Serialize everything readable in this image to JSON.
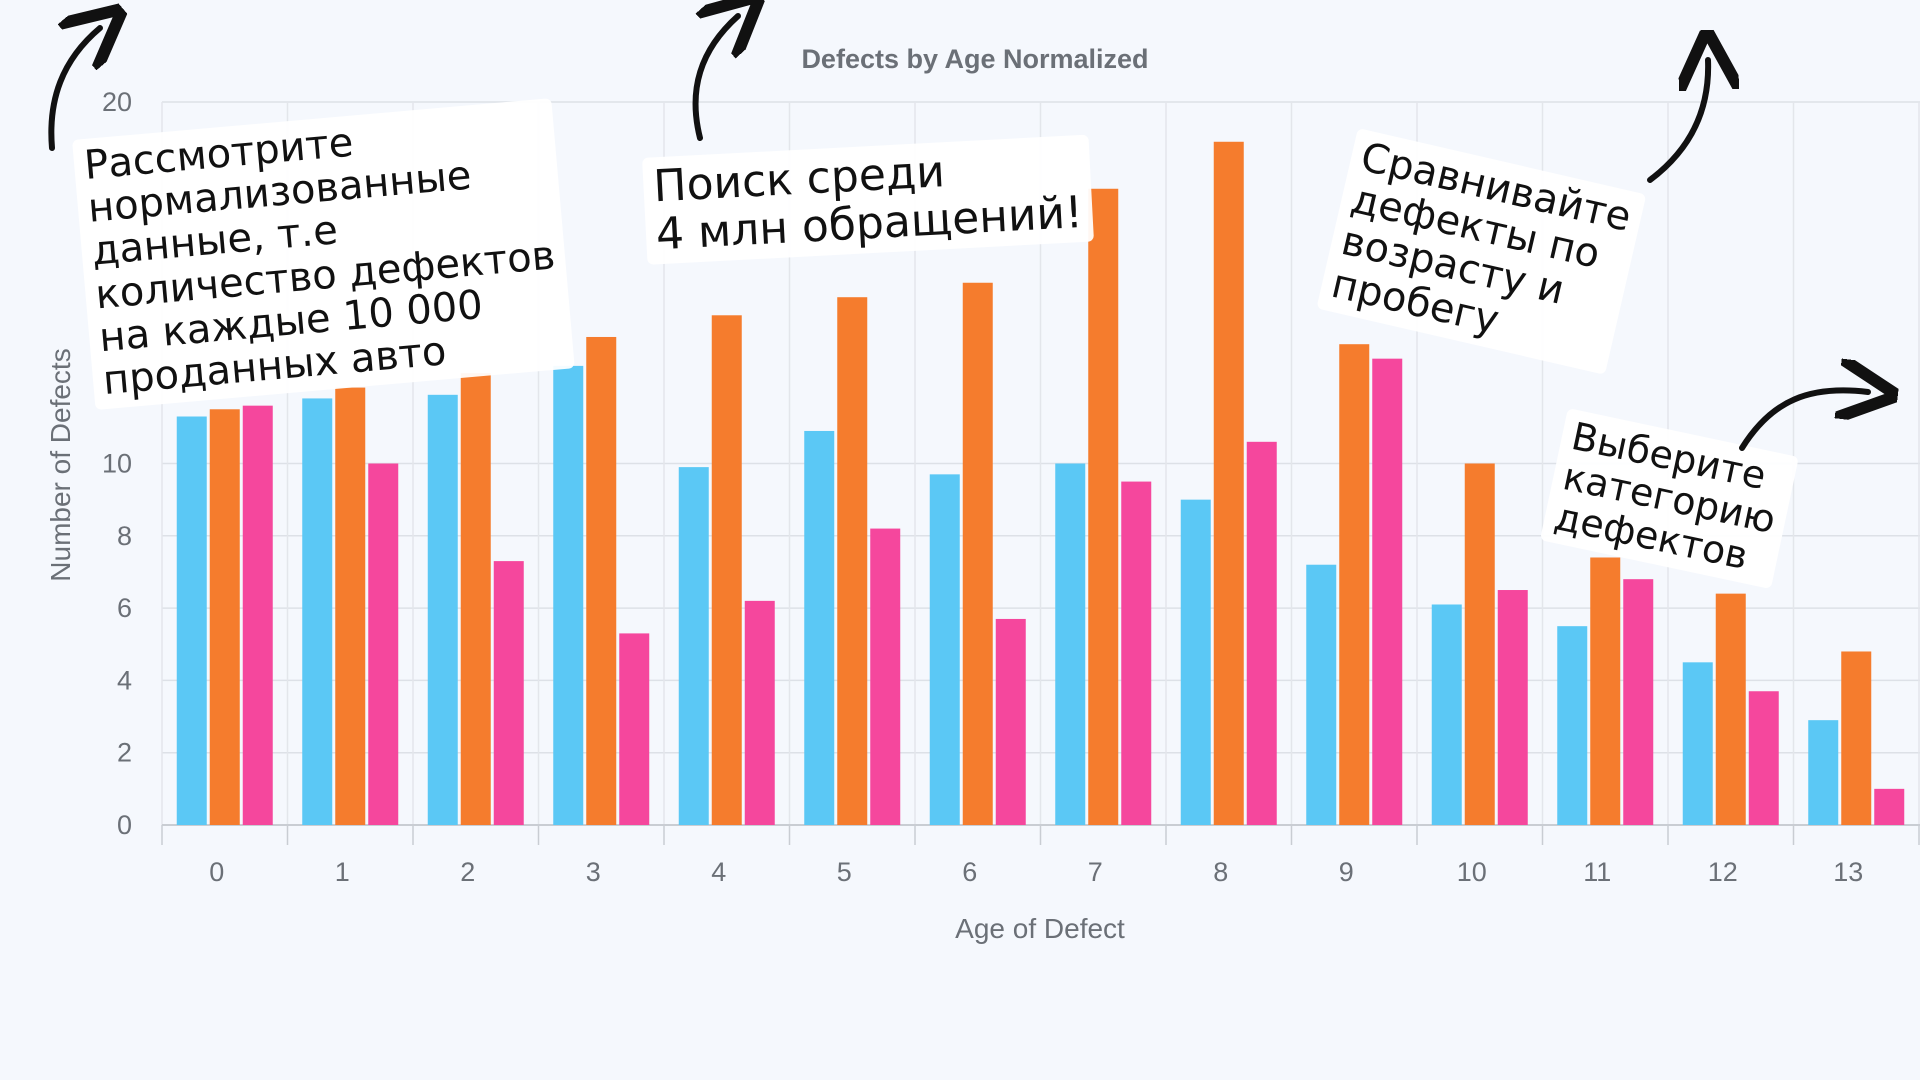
{
  "chart_data": {
    "type": "bar",
    "title": "Defects by Age Normalized",
    "xlabel": "Age of Defect",
    "ylabel": "Number of Defects",
    "ylim": [
      0,
      20
    ],
    "y_ticks": [
      0,
      2,
      4,
      6,
      8,
      10,
      20
    ],
    "categories": [
      "0",
      "1",
      "2",
      "3",
      "4",
      "5",
      "6",
      "7",
      "8",
      "9",
      "10",
      "11",
      "12",
      "13"
    ],
    "grid": true,
    "legend": "none",
    "series": [
      {
        "color": "#5bc8f5",
        "values": [
          11.3,
          11.8,
          11.9,
          12.7,
          9.9,
          10.9,
          9.7,
          10.0,
          9.0,
          7.2,
          6.1,
          5.5,
          4.5,
          2.9
        ]
      },
      {
        "color": "#f57c2d",
        "values": [
          11.5,
          12.1,
          12.5,
          13.5,
          14.1,
          14.6,
          15.0,
          17.6,
          18.9,
          13.3,
          10.0,
          7.4,
          6.4,
          4.8
        ]
      },
      {
        "color": "#f5479d",
        "values": [
          11.6,
          10.0,
          7.3,
          5.3,
          6.2,
          8.2,
          5.7,
          9.5,
          10.6,
          12.9,
          6.5,
          6.8,
          3.7,
          1.0
        ]
      }
    ]
  },
  "callouts": {
    "normalized": "Рассмотрите\nнормализованные\nданные, т.е\nколичество дефектов\nна каждые 10 000\nпроданных авто",
    "search": "Поиск среди\n4 млн обращений!",
    "compare": "Сравнивайте\nдефекты по\nвозрасту и\nпробегу",
    "category": "Выберите\nкатегорию\nдефектов"
  }
}
